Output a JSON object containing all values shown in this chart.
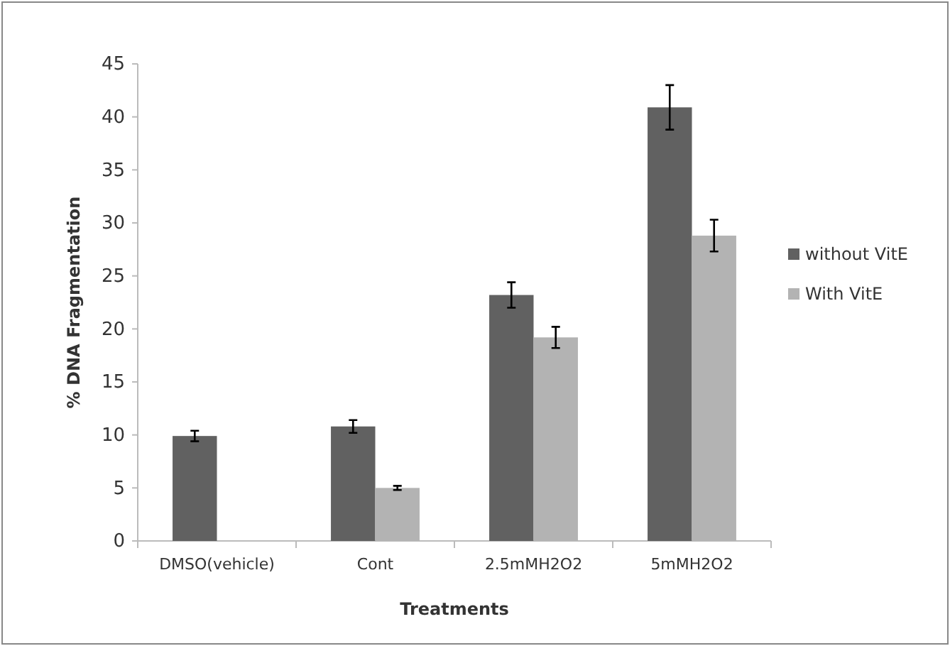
{
  "chart_data": {
    "type": "bar",
    "xlabel": "Treatments",
    "ylabel": "% DNA Fragmentation",
    "categories": [
      "DMSO(vehicle)",
      "Cont",
      "2.5mMH2O2",
      "5mMH2O2"
    ],
    "series": [
      {
        "name": "without VitE",
        "color": "#616161",
        "values": [
          9.9,
          10.8,
          23.2,
          40.9
        ],
        "errors": [
          0.5,
          0.6,
          1.2,
          2.1
        ]
      },
      {
        "name": "With VitE",
        "color": "#b3b3b3",
        "values": [
          null,
          5.0,
          19.2,
          28.8
        ],
        "errors": [
          null,
          0.2,
          1.0,
          1.5
        ]
      }
    ],
    "ylim": [
      0,
      45
    ],
    "yticks": [
      0,
      5,
      10,
      15,
      20,
      25,
      30,
      35,
      40,
      45
    ],
    "grid": false,
    "legend": "right"
  }
}
